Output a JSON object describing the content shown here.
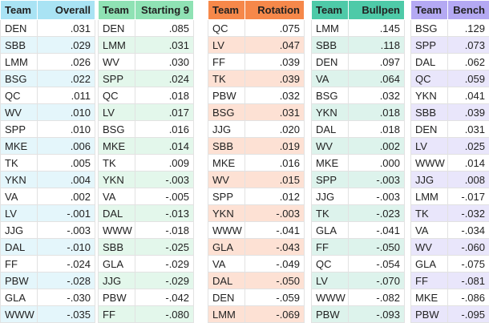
{
  "tables": [
    {
      "header": [
        "Team",
        "Overall"
      ],
      "rows": [
        [
          "DEN",
          ".031"
        ],
        [
          "SBB",
          ".029"
        ],
        [
          "LMM",
          ".026"
        ],
        [
          "BSG",
          ".022"
        ],
        [
          "QC",
          ".011"
        ],
        [
          "WV",
          ".010"
        ],
        [
          "SPP",
          ".010"
        ],
        [
          "MKE",
          ".006"
        ],
        [
          "TK",
          ".005"
        ],
        [
          "YKN",
          ".004"
        ],
        [
          "VA",
          ".002"
        ],
        [
          "LV",
          "-.001"
        ],
        [
          "JJG",
          "-.003"
        ],
        [
          "DAL",
          "-.010"
        ],
        [
          "FF",
          "-.024"
        ],
        [
          "PBW",
          "-.028"
        ],
        [
          "GLA",
          "-.030"
        ],
        [
          "WWW",
          "-.035"
        ]
      ]
    },
    {
      "header": [
        "Team",
        "Starting 9"
      ],
      "rows": [
        [
          "DEN",
          ".085"
        ],
        [
          "LMM",
          ".031"
        ],
        [
          "WV",
          ".030"
        ],
        [
          "SPP",
          ".024"
        ],
        [
          "QC",
          ".018"
        ],
        [
          "LV",
          ".017"
        ],
        [
          "BSG",
          ".016"
        ],
        [
          "MKE",
          ".014"
        ],
        [
          "TK",
          ".009"
        ],
        [
          "YKN",
          "-.003"
        ],
        [
          "VA",
          "-.005"
        ],
        [
          "DAL",
          "-.013"
        ],
        [
          "WWW",
          "-.018"
        ],
        [
          "SBB",
          "-.025"
        ],
        [
          "GLA",
          "-.029"
        ],
        [
          "JJG",
          "-.029"
        ],
        [
          "PBW",
          "-.042"
        ],
        [
          "FF",
          "-.080"
        ]
      ]
    },
    {
      "header": [
        "Team",
        "Rotation"
      ],
      "rows": [
        [
          "QC",
          ".075"
        ],
        [
          "LV",
          ".047"
        ],
        [
          "FF",
          ".039"
        ],
        [
          "TK",
          ".039"
        ],
        [
          "PBW",
          ".032"
        ],
        [
          "BSG",
          ".031"
        ],
        [
          "JJG",
          ".020"
        ],
        [
          "SBB",
          ".019"
        ],
        [
          "MKE",
          ".016"
        ],
        [
          "WV",
          ".015"
        ],
        [
          "SPP",
          ".012"
        ],
        [
          "YKN",
          "-.003"
        ],
        [
          "WWW",
          "-.041"
        ],
        [
          "GLA",
          "-.043"
        ],
        [
          "VA",
          "-.049"
        ],
        [
          "DAL",
          "-.050"
        ],
        [
          "DEN",
          "-.059"
        ],
        [
          "LMM",
          "-.069"
        ]
      ]
    },
    {
      "header": [
        "Team",
        "Bullpen"
      ],
      "rows": [
        [
          "LMM",
          ".145"
        ],
        [
          "SBB",
          ".118"
        ],
        [
          "DEN",
          ".097"
        ],
        [
          "VA",
          ".064"
        ],
        [
          "BSG",
          ".032"
        ],
        [
          "YKN",
          ".018"
        ],
        [
          "DAL",
          ".018"
        ],
        [
          "WV",
          ".002"
        ],
        [
          "MKE",
          ".000"
        ],
        [
          "SPP",
          "-.003"
        ],
        [
          "JJG",
          "-.003"
        ],
        [
          "TK",
          "-.023"
        ],
        [
          "GLA",
          "-.041"
        ],
        [
          "FF",
          "-.050"
        ],
        [
          "QC",
          "-.054"
        ],
        [
          "LV",
          "-.070"
        ],
        [
          "WWW",
          "-.082"
        ],
        [
          "PBW",
          "-.093"
        ]
      ]
    },
    {
      "header": [
        "Team",
        "Bench"
      ],
      "rows": [
        [
          "BSG",
          ".129"
        ],
        [
          "SPP",
          ".073"
        ],
        [
          "DAL",
          ".062"
        ],
        [
          "QC",
          ".059"
        ],
        [
          "YKN",
          ".041"
        ],
        [
          "SBB",
          ".039"
        ],
        [
          "DEN",
          ".031"
        ],
        [
          "LV",
          ".025"
        ],
        [
          "WWW",
          ".014"
        ],
        [
          "JJG",
          ".008"
        ],
        [
          "LMM",
          "-.017"
        ],
        [
          "TK",
          "-.032"
        ],
        [
          "VA",
          "-.034"
        ],
        [
          "WV",
          "-.060"
        ],
        [
          "GLA",
          "-.075"
        ],
        [
          "FF",
          "-.081"
        ],
        [
          "MKE",
          "-.086"
        ],
        [
          "PBW",
          "-.095"
        ]
      ]
    }
  ]
}
